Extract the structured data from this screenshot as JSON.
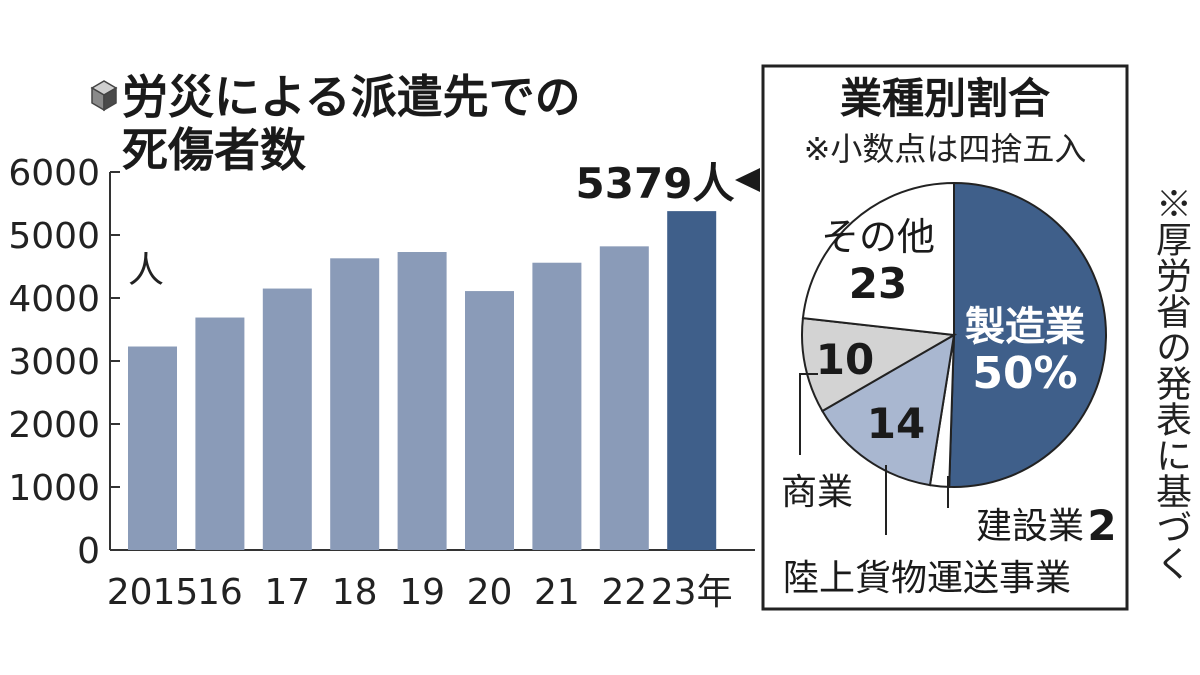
{
  "bar_title_line1": "労災による派遣先での",
  "bar_title_line2": "死傷者数",
  "unit_label": "人",
  "callout": "5379人",
  "side_note": "※厚労省の発表に基づく",
  "pie_panel": {
    "title": "業種別割合",
    "subtitle": "※小数点は四捨五入"
  },
  "colors": {
    "bar": "#8a9bb8",
    "bar_highlight": "#3f5f8a",
    "pie_manufacturing": "#3f5f8a",
    "pie_construction": "#ffffff",
    "pie_transport": "#a9b7d0",
    "pie_commerce": "#d3d3d3",
    "pie_other": "#ffffff"
  },
  "chart_data": [
    {
      "type": "bar",
      "categories": [
        "2015",
        "16",
        "17",
        "18",
        "19",
        "20",
        "21",
        "22",
        "23年"
      ],
      "values": [
        3230,
        3690,
        4150,
        4630,
        4730,
        4110,
        4560,
        4820,
        5379
      ],
      "highlight_index": 8,
      "title": "労災による派遣先での死傷者数",
      "ylabel": "人",
      "ylim": [
        0,
        6000
      ],
      "yticks": [
        "0",
        "1000",
        "2000",
        "3000",
        "4000",
        "5000",
        "6000"
      ],
      "grid": false
    },
    {
      "type": "pie",
      "title": "業種別割合",
      "slices": [
        {
          "name": "製造業",
          "value": 50,
          "label": "50%"
        },
        {
          "name": "建設業",
          "value": 2,
          "label": "2"
        },
        {
          "name": "陸上貨物運送事業",
          "value": 14,
          "label": "14"
        },
        {
          "name": "商業",
          "value": 10,
          "label": "10"
        },
        {
          "name": "その他",
          "value": 23,
          "label": "23"
        }
      ]
    }
  ]
}
